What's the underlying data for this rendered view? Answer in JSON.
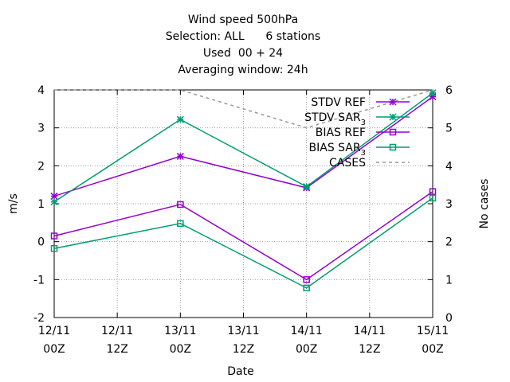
{
  "chart_data": {
    "type": "line",
    "title_lines": [
      "Wind speed 500hPa",
      "Selection: ALL      6 stations",
      "Used  00 + 24",
      "Averaging window: 24h"
    ],
    "xlabel": "Date",
    "ylabel": "m/s",
    "y2label": "No cases",
    "x_ticks": [
      {
        "line1": "12/11",
        "line2": "00Z"
      },
      {
        "line1": "12/11",
        "line2": "12Z"
      },
      {
        "line1": "13/11",
        "line2": "00Z"
      },
      {
        "line1": "13/11",
        "line2": "12Z"
      },
      {
        "line1": "14/11",
        "line2": "00Z"
      },
      {
        "line1": "14/11",
        "line2": "12Z"
      },
      {
        "line1": "15/11",
        "line2": "00Z"
      }
    ],
    "x_values": [
      "12/11 00Z",
      "13/11 00Z",
      "14/11 00Z",
      "15/11 00Z"
    ],
    "ylim": [
      -2,
      4
    ],
    "y_ticks": [
      "-2",
      "-1",
      "0",
      "1",
      "2",
      "3",
      "4"
    ],
    "y2lim": [
      0,
      6
    ],
    "y2_ticks": [
      "0",
      "1",
      "2",
      "3",
      "4",
      "5",
      "6"
    ],
    "grid": true,
    "legend_position": "top-right",
    "series": [
      {
        "name": "STDV REF",
        "color": "#9400d3",
        "marker": "x-star",
        "axis": "left",
        "values": [
          1.2,
          2.25,
          1.42,
          3.82
        ]
      },
      {
        "name": "STDV SAR_3",
        "color": "#009e73",
        "marker": "x-star",
        "axis": "left",
        "values": [
          1.05,
          3.22,
          1.45,
          3.92
        ]
      },
      {
        "name": "BIAS REF",
        "color": "#9400d3",
        "marker": "square",
        "axis": "left",
        "values": [
          0.15,
          0.98,
          -1.0,
          1.32
        ]
      },
      {
        "name": "BIAS SAR_3",
        "color": "#009e73",
        "marker": "square",
        "axis": "left",
        "values": [
          -0.18,
          0.48,
          -1.22,
          1.15
        ]
      },
      {
        "name": "CASES",
        "color": "#999999",
        "marker": "none",
        "dashed": true,
        "axis": "right",
        "values": [
          6,
          6,
          5,
          6
        ]
      }
    ]
  }
}
